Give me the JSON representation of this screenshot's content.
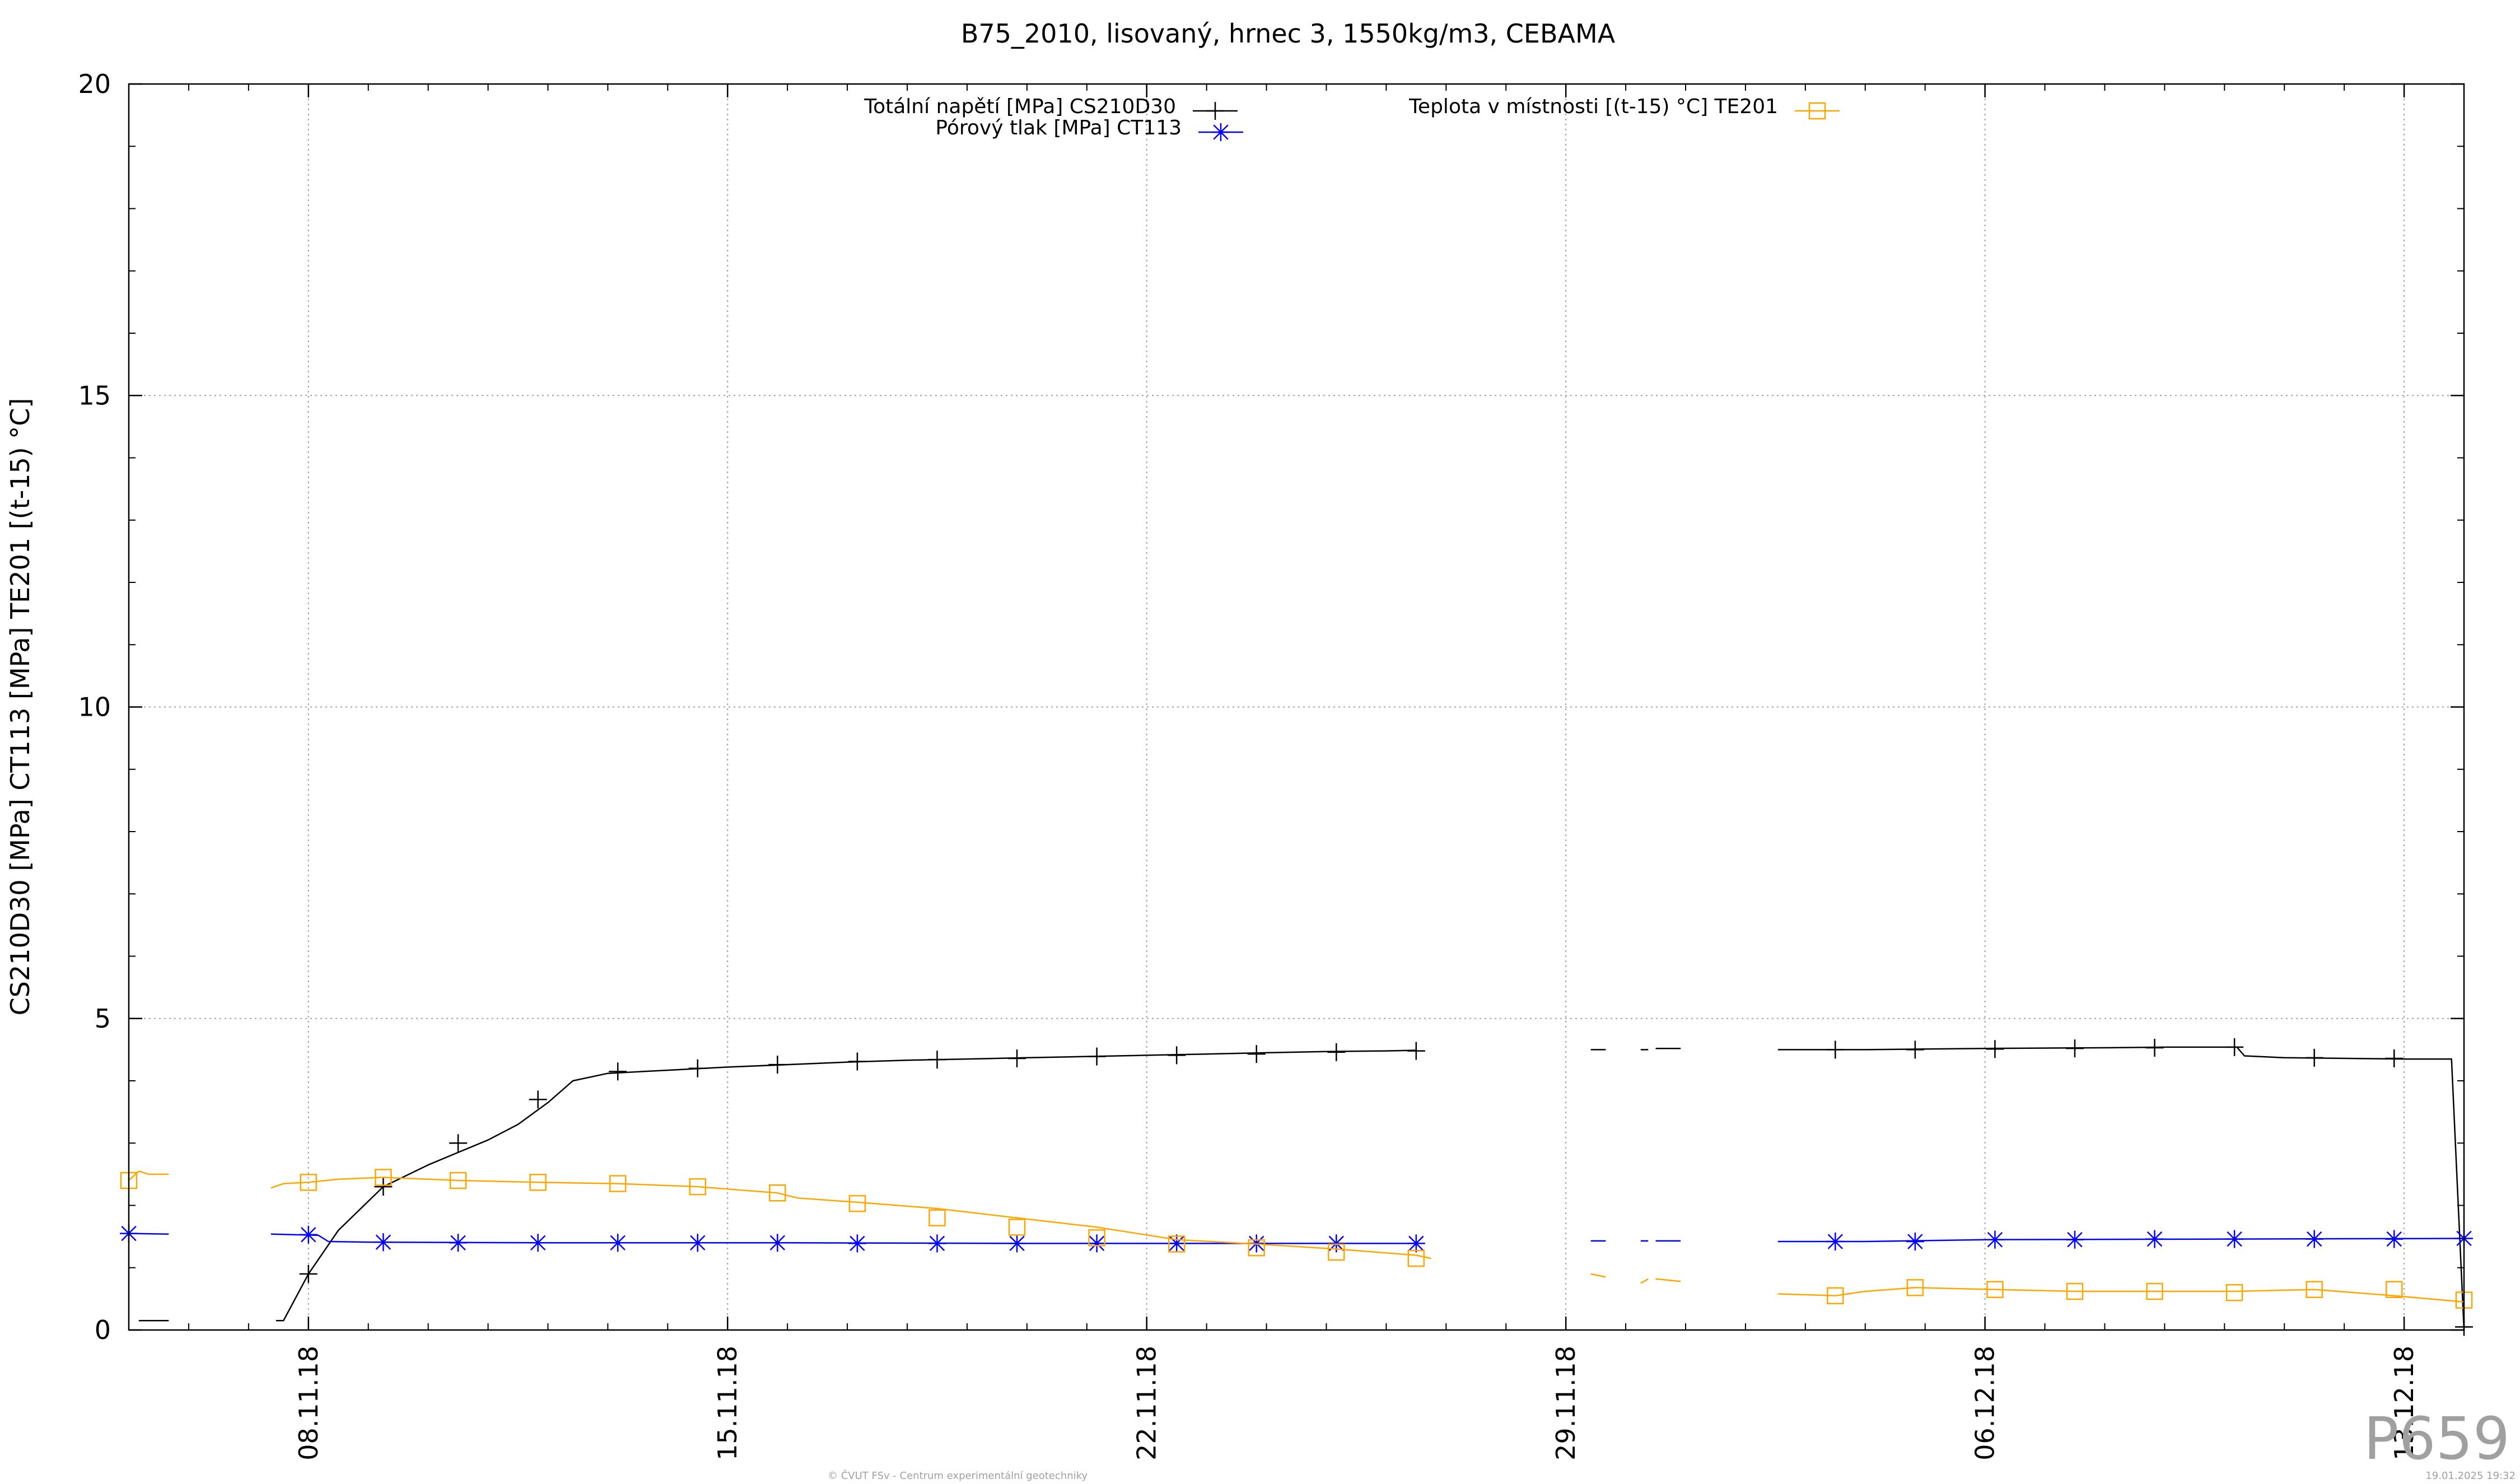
{
  "chart_data": {
    "type": "line",
    "title": "B75_2010, lisovaný, hrnec 3, 1550kg/m3, CEBAMA",
    "ylabel": "CS210D30 [MPa] CT113 [MPa] TE201 [(t-15) °C]",
    "xlabel": "",
    "ylim": [
      0,
      20
    ],
    "yticks": [
      "0",
      "5",
      "10",
      "15",
      "20"
    ],
    "xlim": [
      "2018-11-05",
      "2018-12-14"
    ],
    "xticks": [
      {
        "date": "2018-11-08",
        "label": "08.11.18"
      },
      {
        "date": "2018-11-15",
        "label": "15.11.18"
      },
      {
        "date": "2018-11-22",
        "label": "22.11.18"
      },
      {
        "date": "2018-11-29",
        "label": "29.11.18"
      },
      {
        "date": "2018-12-06",
        "label": "06.12.18"
      },
      {
        "date": "2018-12-13",
        "label": "13.12.18"
      }
    ],
    "grid": true,
    "legend": "top-center",
    "series": [
      {
        "name": "Totální napětí [MPa] CS210D30",
        "color": "#000000",
        "marker": "plus",
        "segments": [
          [
            [
              "2018-11-05 04:00",
              0.15
            ],
            [
              "2018-11-05 16:00",
              0.15
            ]
          ],
          [
            [
              "2018-11-07 11:00",
              0.15
            ],
            [
              "2018-11-07 14:00",
              0.15
            ],
            [
              "2018-11-08 00:00",
              0.9
            ],
            [
              "2018-11-08 12:00",
              1.6
            ],
            [
              "2018-11-09 06:00",
              2.3
            ],
            [
              "2018-11-10 00:00",
              2.65
            ],
            [
              "2018-11-10 12:00",
              2.85
            ],
            [
              "2018-11-11 00:00",
              3.05
            ],
            [
              "2018-11-11 12:00",
              3.3
            ],
            [
              "2018-11-12 00:00",
              3.65
            ],
            [
              "2018-11-12 10:00",
              4.0
            ],
            [
              "2018-11-13 00:00",
              4.12
            ],
            [
              "2018-11-14 00:00",
              4.17
            ],
            [
              "2018-11-15 00:00",
              4.22
            ],
            [
              "2018-11-16 00:00",
              4.26
            ],
            [
              "2018-11-17 00:00",
              4.3
            ],
            [
              "2018-11-18 00:00",
              4.33
            ],
            [
              "2018-11-19 00:00",
              4.35
            ],
            [
              "2018-11-20 00:00",
              4.37
            ],
            [
              "2018-11-21 00:00",
              4.39
            ],
            [
              "2018-11-22 00:00",
              4.41
            ],
            [
              "2018-11-23 00:00",
              4.43
            ],
            [
              "2018-11-24 00:00",
              4.45
            ],
            [
              "2018-11-25 00:00",
              4.47
            ],
            [
              "2018-11-26 00:00",
              4.48
            ],
            [
              "2018-11-26 12:00",
              4.49
            ]
          ],
          [
            [
              "2018-11-29 10:00",
              4.5
            ],
            [
              "2018-11-29 16:00",
              4.5
            ]
          ],
          [
            [
              "2018-11-30 06:00",
              4.5
            ],
            [
              "2018-11-30 09:00",
              4.5
            ]
          ],
          [
            [
              "2018-11-30 12:00",
              4.52
            ],
            [
              "2018-11-30 22:00",
              4.52
            ]
          ],
          [
            [
              "2018-12-02 13:00",
              4.5
            ],
            [
              "2018-12-04 00:00",
              4.5
            ],
            [
              "2018-12-06 00:00",
              4.52
            ],
            [
              "2018-12-08 00:00",
              4.53
            ],
            [
              "2018-12-09 00:00",
              4.54
            ],
            [
              "2018-12-10 05:00",
              4.54
            ],
            [
              "2018-12-10 08:00",
              4.4
            ],
            [
              "2018-12-11 00:00",
              4.37
            ],
            [
              "2018-12-13 00:00",
              4.35
            ],
            [
              "2018-12-13 19:00",
              4.35
            ],
            [
              "2018-12-14 00:00",
              0.0
            ]
          ]
        ],
        "marker_points": [
          [
            "2018-11-08 00:00",
            0.9
          ],
          [
            "2018-11-09 06:00",
            2.3
          ],
          [
            "2018-11-10 12:00",
            3.0
          ],
          [
            "2018-11-11 20:00",
            3.7
          ],
          [
            "2018-11-13 04:00",
            4.15
          ],
          [
            "2018-11-14 12:00",
            4.2
          ],
          [
            "2018-11-15 20:00",
            4.26
          ],
          [
            "2018-11-17 04:00",
            4.31
          ],
          [
            "2018-11-18 12:00",
            4.34
          ],
          [
            "2018-11-19 20:00",
            4.36
          ],
          [
            "2018-11-21 04:00",
            4.39
          ],
          [
            "2018-11-22 12:00",
            4.41
          ],
          [
            "2018-11-23 20:00",
            4.43
          ],
          [
            "2018-11-25 04:00",
            4.46
          ],
          [
            "2018-11-26 12:00",
            4.48
          ],
          [
            "2018-12-03 12:00",
            4.5
          ],
          [
            "2018-12-04 20:00",
            4.5
          ],
          [
            "2018-12-06 04:00",
            4.51
          ],
          [
            "2018-12-07 12:00",
            4.52
          ],
          [
            "2018-12-08 20:00",
            4.53
          ],
          [
            "2018-12-10 04:00",
            4.54
          ],
          [
            "2018-12-11 12:00",
            4.37
          ],
          [
            "2018-12-12 20:00",
            4.36
          ],
          [
            "2018-12-14 00:00",
            0.05
          ]
        ]
      },
      {
        "name": "Pórový tlak [MPa] CT113",
        "color": "#0000ff",
        "marker": "star",
        "segments": [
          [
            [
              "2018-11-05 00:00",
              1.55
            ],
            [
              "2018-11-05 16:00",
              1.54
            ]
          ],
          [
            [
              "2018-11-07 09:00",
              1.54
            ],
            [
              "2018-11-08 04:00",
              1.52
            ],
            [
              "2018-11-08 08:00",
              1.42
            ],
            [
              "2018-11-09 00:00",
              1.41
            ],
            [
              "2018-11-12 00:00",
              1.4
            ],
            [
              "2018-11-16 00:00",
              1.4
            ],
            [
              "2018-11-20 00:00",
              1.39
            ],
            [
              "2018-11-24 00:00",
              1.39
            ],
            [
              "2018-11-26 12:00",
              1.39
            ]
          ],
          [
            [
              "2018-11-29 10:00",
              1.43
            ],
            [
              "2018-11-29 16:00",
              1.43
            ]
          ],
          [
            [
              "2018-11-30 06:00",
              1.43
            ],
            [
              "2018-11-30 09:00",
              1.43
            ]
          ],
          [
            [
              "2018-11-30 12:00",
              1.43
            ],
            [
              "2018-11-30 22:00",
              1.43
            ]
          ],
          [
            [
              "2018-12-02 13:00",
              1.42
            ],
            [
              "2018-12-04 00:00",
              1.42
            ],
            [
              "2018-12-06 00:00",
              1.45
            ],
            [
              "2018-12-10 00:00",
              1.46
            ],
            [
              "2018-12-14 00:00",
              1.47
            ]
          ]
        ],
        "marker_points": [
          [
            "2018-11-05 00:00",
            1.55
          ],
          [
            "2018-11-08 00:00",
            1.53
          ],
          [
            "2018-11-09 06:00",
            1.41
          ],
          [
            "2018-11-10 12:00",
            1.4
          ],
          [
            "2018-11-11 20:00",
            1.4
          ],
          [
            "2018-11-13 04:00",
            1.4
          ],
          [
            "2018-11-14 12:00",
            1.4
          ],
          [
            "2018-11-15 20:00",
            1.4
          ],
          [
            "2018-11-17 04:00",
            1.39
          ],
          [
            "2018-11-18 12:00",
            1.39
          ],
          [
            "2018-11-19 20:00",
            1.39
          ],
          [
            "2018-11-21 04:00",
            1.39
          ],
          [
            "2018-11-22 12:00",
            1.39
          ],
          [
            "2018-11-23 20:00",
            1.39
          ],
          [
            "2018-11-25 04:00",
            1.39
          ],
          [
            "2018-11-26 12:00",
            1.39
          ],
          [
            "2018-12-03 12:00",
            1.42
          ],
          [
            "2018-12-04 20:00",
            1.42
          ],
          [
            "2018-12-06 04:00",
            1.45
          ],
          [
            "2018-12-07 12:00",
            1.45
          ],
          [
            "2018-12-08 20:00",
            1.46
          ],
          [
            "2018-12-10 04:00",
            1.46
          ],
          [
            "2018-12-11 12:00",
            1.46
          ],
          [
            "2018-12-12 20:00",
            1.46
          ],
          [
            "2018-12-14 00:00",
            1.47
          ]
        ]
      },
      {
        "name": "Teplota v místnosti [(t-15) °C] TE201",
        "color": "#ffa500",
        "marker": "square",
        "segments": [
          [
            [
              "2018-11-05 00:00",
              2.4
            ],
            [
              "2018-11-05 04:00",
              2.55
            ],
            [
              "2018-11-05 08:00",
              2.5
            ],
            [
              "2018-11-05 16:00",
              2.5
            ]
          ],
          [
            [
              "2018-11-07 09:00",
              2.28
            ],
            [
              "2018-11-07 14:00",
              2.35
            ],
            [
              "2018-11-08 00:00",
              2.37
            ],
            [
              "2018-11-08 12:00",
              2.42
            ],
            [
              "2018-11-09 06:00",
              2.45
            ],
            [
              "2018-11-10 12:00",
              2.4
            ],
            [
              "2018-11-11 20:00",
              2.37
            ],
            [
              "2018-11-13 04:00",
              2.35
            ],
            [
              "2018-11-14 12:00",
              2.3
            ],
            [
              "2018-11-15 20:00",
              2.2
            ],
            [
              "2018-11-16 04:00",
              2.12
            ],
            [
              "2018-11-17 04:00",
              2.05
            ],
            [
              "2018-11-18 12:00",
              1.95
            ],
            [
              "2018-11-19 20:00",
              1.8
            ],
            [
              "2018-11-21 04:00",
              1.65
            ],
            [
              "2018-11-22 12:00",
              1.45
            ],
            [
              "2018-11-23 20:00",
              1.38
            ],
            [
              "2018-11-25 04:00",
              1.3
            ],
            [
              "2018-11-26 12:00",
              1.2
            ],
            [
              "2018-11-26 18:00",
              1.15
            ]
          ],
          [
            [
              "2018-11-29 10:00",
              0.9
            ],
            [
              "2018-11-29 16:00",
              0.85
            ]
          ],
          [
            [
              "2018-11-30 06:00",
              0.75
            ],
            [
              "2018-11-30 09:00",
              0.82
            ]
          ],
          [
            [
              "2018-11-30 12:00",
              0.82
            ],
            [
              "2018-11-30 22:00",
              0.78
            ]
          ],
          [
            [
              "2018-12-02 13:00",
              0.58
            ],
            [
              "2018-12-03 12:00",
              0.55
            ],
            [
              "2018-12-04 00:00",
              0.62
            ],
            [
              "2018-12-04 20:00",
              0.68
            ],
            [
              "2018-12-06 04:00",
              0.65
            ],
            [
              "2018-12-07 12:00",
              0.62
            ],
            [
              "2018-12-08 20:00",
              0.62
            ],
            [
              "2018-12-10 04:00",
              0.62
            ],
            [
              "2018-12-11 12:00",
              0.65
            ],
            [
              "2018-12-12 20:00",
              0.55
            ],
            [
              "2018-12-14 00:00",
              0.45
            ]
          ]
        ],
        "marker_points": [
          [
            "2018-11-05 00:00",
            2.4
          ],
          [
            "2018-11-08 00:00",
            2.37
          ],
          [
            "2018-11-09 06:00",
            2.45
          ],
          [
            "2018-11-10 12:00",
            2.4
          ],
          [
            "2018-11-11 20:00",
            2.37
          ],
          [
            "2018-11-13 04:00",
            2.35
          ],
          [
            "2018-11-14 12:00",
            2.3
          ],
          [
            "2018-11-15 20:00",
            2.2
          ],
          [
            "2018-11-17 04:00",
            2.03
          ],
          [
            "2018-11-18 12:00",
            1.8
          ],
          [
            "2018-11-19 20:00",
            1.65
          ],
          [
            "2018-11-21 04:00",
            1.48
          ],
          [
            "2018-11-22 12:00",
            1.38
          ],
          [
            "2018-11-23 20:00",
            1.32
          ],
          [
            "2018-11-25 04:00",
            1.25
          ],
          [
            "2018-11-26 12:00",
            1.15
          ],
          [
            "2018-12-03 12:00",
            0.55
          ],
          [
            "2018-12-04 20:00",
            0.68
          ],
          [
            "2018-12-06 04:00",
            0.65
          ],
          [
            "2018-12-07 12:00",
            0.62
          ],
          [
            "2018-12-08 20:00",
            0.62
          ],
          [
            "2018-12-10 04:00",
            0.6
          ],
          [
            "2018-12-11 12:00",
            0.65
          ],
          [
            "2018-12-12 20:00",
            0.65
          ],
          [
            "2018-12-14 00:00",
            0.48
          ]
        ]
      }
    ]
  },
  "footer": {
    "copyright": "© ČVUT FSv - Centrum experimentální geotechniky",
    "timestamp": "19.01.2025 19:32",
    "stamp": "P659"
  }
}
